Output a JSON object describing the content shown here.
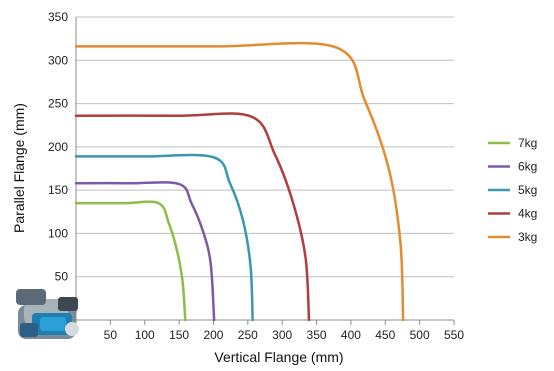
{
  "chart_data": {
    "type": "line",
    "xlabel": "Vertical Flange (mm)",
    "ylabel": "Parallel Flange (mm)",
    "xlim": [
      0,
      550
    ],
    "ylim": [
      0,
      350
    ],
    "x_ticks": [
      "50",
      "100",
      "150",
      "200",
      "250",
      "300",
      "350",
      "400",
      "450",
      "500",
      "550"
    ],
    "y_ticks": [
      "50",
      "100",
      "150",
      "200",
      "250",
      "300",
      "350"
    ],
    "grid": "horizontal",
    "legend_position": "right",
    "series": [
      {
        "name": "7kg",
        "color": "#8fbc45",
        "points": [
          [
            0,
            135
          ],
          [
            70,
            135
          ],
          [
            120,
            135
          ],
          [
            135,
            112
          ],
          [
            147,
            80
          ],
          [
            155,
            45
          ],
          [
            159,
            0
          ]
        ]
      },
      {
        "name": "6kg",
        "color": "#7c5ba6",
        "points": [
          [
            0,
            158
          ],
          [
            80,
            158
          ],
          [
            150,
            157
          ],
          [
            168,
            135
          ],
          [
            185,
            102
          ],
          [
            196,
            65
          ],
          [
            201,
            0
          ]
        ]
      },
      {
        "name": "5kg",
        "color": "#3b97ad",
        "points": [
          [
            0,
            189
          ],
          [
            100,
            189
          ],
          [
            200,
            188
          ],
          [
            224,
            158
          ],
          [
            243,
            115
          ],
          [
            254,
            62
          ],
          [
            257,
            0
          ]
        ]
      },
      {
        "name": "4kg",
        "color": "#b13d3c",
        "points": [
          [
            0,
            236
          ],
          [
            150,
            236
          ],
          [
            255,
            235
          ],
          [
            289,
            192
          ],
          [
            316,
            135
          ],
          [
            334,
            72
          ],
          [
            339,
            0
          ]
        ]
      },
      {
        "name": "3kg",
        "color": "#e48b31",
        "points": [
          [
            0,
            316
          ],
          [
            200,
            316
          ],
          [
            378,
            315
          ],
          [
            420,
            254
          ],
          [
            455,
            175
          ],
          [
            472,
            90
          ],
          [
            476,
            0
          ]
        ]
      }
    ]
  },
  "icons": {
    "corner": "flange-machine-icon"
  }
}
